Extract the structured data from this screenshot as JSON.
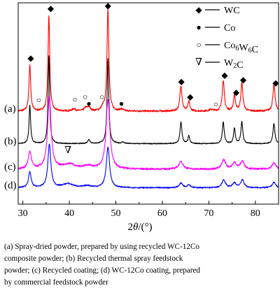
{
  "chart_data": {
    "type": "line",
    "xlabel": "2θ/(°)",
    "ylabel": "",
    "xlim": [
      29,
      85
    ],
    "x_ticks": [
      30,
      40,
      50,
      60,
      70,
      80
    ],
    "y_ticks_shown": false,
    "grid": false,
    "series": [
      {
        "name": "(a)",
        "label": "(a)",
        "color": "#ff0000",
        "baseline": 0.6,
        "noise": 0.006,
        "peaks": [
          [
            31.5,
            0.3,
            0.22
          ],
          [
            35.6,
            0.62,
            0.22
          ],
          [
            48.3,
            0.66,
            0.24
          ],
          [
            64.0,
            0.16,
            0.28
          ],
          [
            65.7,
            0.06,
            0.25
          ],
          [
            73.1,
            0.2,
            0.26
          ],
          [
            75.5,
            0.1,
            0.25
          ],
          [
            77.1,
            0.18,
            0.26
          ],
          [
            84.0,
            0.17,
            0.28
          ],
          [
            41.0,
            0.015,
            0.4
          ],
          [
            43.5,
            0.02,
            0.4
          ],
          [
            44.2,
            0.025,
            0.35
          ],
          [
            47.2,
            0.02,
            0.4
          ],
          [
            51.2,
            0.012,
            0.4
          ],
          [
            70.5,
            0.01,
            0.5
          ]
        ]
      },
      {
        "name": "(b)",
        "label": "(b)",
        "color": "#000000",
        "baseline": 0.39,
        "noise": 0.003,
        "peaks": [
          [
            31.5,
            0.25,
            0.2
          ],
          [
            35.6,
            0.57,
            0.2
          ],
          [
            48.3,
            0.55,
            0.22
          ],
          [
            64.0,
            0.14,
            0.25
          ],
          [
            65.7,
            0.05,
            0.22
          ],
          [
            73.1,
            0.14,
            0.24
          ],
          [
            75.5,
            0.1,
            0.22
          ],
          [
            77.1,
            0.14,
            0.24
          ],
          [
            84.0,
            0.13,
            0.25
          ],
          [
            44.2,
            0.025,
            0.3
          ],
          [
            51.5,
            0.01,
            0.3
          ]
        ]
      },
      {
        "name": "(c)",
        "label": "(c)",
        "color": "#ff00ff",
        "baseline": 0.225,
        "noise": 0.006,
        "peaks": [
          [
            31.5,
            0.11,
            0.4
          ],
          [
            35.7,
            0.46,
            0.45
          ],
          [
            48.3,
            0.45,
            0.48
          ],
          [
            64.0,
            0.05,
            0.55
          ],
          [
            73.2,
            0.06,
            0.5
          ],
          [
            75.5,
            0.04,
            0.5
          ],
          [
            77.2,
            0.05,
            0.5
          ],
          [
            84.0,
            0.04,
            0.5
          ],
          [
            39.7,
            0.025,
            1.6
          ],
          [
            44.0,
            0.02,
            1.3
          ],
          [
            40.5,
            0.01,
            0.6
          ]
        ]
      },
      {
        "name": "(d)",
        "label": "(d)",
        "color": "#0000ff",
        "baseline": 0.105,
        "noise": 0.004,
        "peaks": [
          [
            31.5,
            0.1,
            0.35
          ],
          [
            35.7,
            0.28,
            0.38
          ],
          [
            48.3,
            0.26,
            0.42
          ],
          [
            64.0,
            0.03,
            0.45
          ],
          [
            65.7,
            0.02,
            0.4
          ],
          [
            73.2,
            0.05,
            0.45
          ],
          [
            75.5,
            0.03,
            0.45
          ],
          [
            77.2,
            0.05,
            0.45
          ],
          [
            84.0,
            0.035,
            0.45
          ],
          [
            39.7,
            0.025,
            1.4
          ],
          [
            43.9,
            0.012,
            1.0
          ]
        ]
      }
    ],
    "markers": [
      {
        "symbol": "◆",
        "x": 31.7,
        "y": 0.925
      },
      {
        "symbol": "◆",
        "x": 36.0,
        "y": 1.245
      },
      {
        "symbol": "◆",
        "x": 48.3,
        "y": 1.265
      },
      {
        "symbol": "◆",
        "x": 64.1,
        "y": 0.775
      },
      {
        "symbol": "◆",
        "x": 66.0,
        "y": 0.675
      },
      {
        "symbol": "◆",
        "x": 73.4,
        "y": 0.815
      },
      {
        "symbol": "◆",
        "x": 75.9,
        "y": 0.705
      },
      {
        "symbol": "◆",
        "x": 77.4,
        "y": 0.785
      },
      {
        "symbol": "◆",
        "x": 84.4,
        "y": 0.765
      },
      {
        "symbol": "●",
        "x": 44.2,
        "y": 0.632
      },
      {
        "symbol": "●",
        "x": 51.2,
        "y": 0.632
      },
      {
        "symbol": "○",
        "x": 33.4,
        "y": 0.655
      },
      {
        "symbol": "○",
        "x": 41.2,
        "y": 0.66
      },
      {
        "symbol": "○",
        "x": 43.4,
        "y": 0.675
      },
      {
        "symbol": "○",
        "x": 47.0,
        "y": 0.675
      },
      {
        "symbol": "○",
        "x": 71.5,
        "y": 0.628
      },
      {
        "symbol": "∇",
        "x": 39.7,
        "y": 0.33
      }
    ],
    "legend": {
      "position": "top-right",
      "items": [
        {
          "symbol": "◆",
          "label": "WC"
        },
        {
          "symbol": "●",
          "label": "Co"
        },
        {
          "symbol": "○",
          "label": "Co6W6C"
        },
        {
          "symbol": "∇",
          "label": "W2C"
        }
      ]
    }
  },
  "caption": [
    "(a) Spray-dried powder, prepared by using recycled WC-12Co",
    "composite powder; (b) Recycled thermal spray feedstock",
    "powder; (c) Recycled coating; (d) WC-12Co coating, prepared",
    "by commercial feedstock powder"
  ]
}
